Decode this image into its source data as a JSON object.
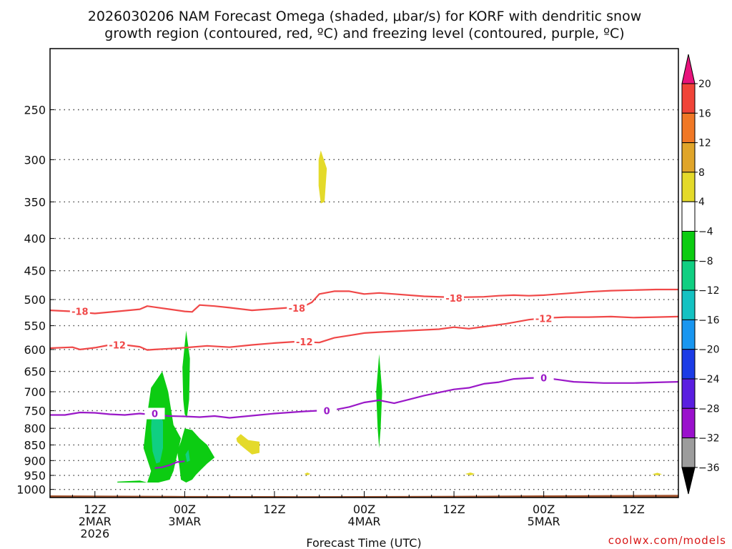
{
  "page": {
    "title_line1": "2026030206 NAM Forecast Omega (shaded, μbar/s) for KORF with dendritic snow",
    "title_line2": "growth region (contoured, red, ºC) and freezing level (contoured, purple, ºC)",
    "credit": "coolwx.com/models"
  },
  "chart_data": {
    "type": "time-height cross section",
    "title": "2026030206 NAM Forecast Omega (shaded, μbar/s) for KORF with dendritic snow growth region (contoured, red, ºC) and freezing level (contoured, purple, ºC)",
    "xlabel": "Forecast Time (UTC)",
    "ylabel": "",
    "x_range_hours": [
      0,
      84
    ],
    "y_range_hPa": [
      1030,
      200
    ],
    "y_scale": "log",
    "y_ticks": [
      250,
      300,
      350,
      400,
      450,
      500,
      550,
      600,
      650,
      700,
      750,
      800,
      850,
      900,
      950,
      1000
    ],
    "x_ticks": [
      {
        "hour": 6,
        "lines": [
          "12Z",
          "2MAR",
          "2026"
        ]
      },
      {
        "hour": 18,
        "lines": [
          "00Z",
          "3MAR"
        ]
      },
      {
        "hour": 30,
        "lines": [
          "12Z"
        ]
      },
      {
        "hour": 42,
        "lines": [
          "00Z",
          "4MAR"
        ]
      },
      {
        "hour": 54,
        "lines": [
          "12Z"
        ]
      },
      {
        "hour": 66,
        "lines": [
          "00Z",
          "5MAR"
        ]
      },
      {
        "hour": 78,
        "lines": [
          "12Z"
        ]
      }
    ],
    "colorbar": {
      "labels": [
        "20",
        "16",
        "12",
        "8",
        "4",
        "−4",
        "−8",
        "−12",
        "−16",
        "−20",
        "−24",
        "−28",
        "−32",
        "−36"
      ],
      "bands": [
        {
          "range": [
            20,
            99
          ],
          "color": "#e8137c"
        },
        {
          "range": [
            16,
            20
          ],
          "color": "#f04438"
        },
        {
          "range": [
            12,
            16
          ],
          "color": "#f07826"
        },
        {
          "range": [
            8,
            12
          ],
          "color": "#e0a52a"
        },
        {
          "range": [
            4,
            8
          ],
          "color": "#e4da2a"
        },
        {
          "range": [
            -4,
            4
          ],
          "color": "#ffffff"
        },
        {
          "range": [
            -8,
            -4
          ],
          "color": "#0ccc12"
        },
        {
          "range": [
            -12,
            -8
          ],
          "color": "#10cf82"
        },
        {
          "range": [
            -16,
            -12
          ],
          "color": "#14c2c2"
        },
        {
          "range": [
            -20,
            -16
          ],
          "color": "#1996f0"
        },
        {
          "range": [
            -24,
            -20
          ],
          "color": "#1c3ce6"
        },
        {
          "range": [
            -28,
            -24
          ],
          "color": "#5a1ee0"
        },
        {
          "range": [
            -32,
            -28
          ],
          "color": "#9a10cc"
        },
        {
          "range": [
            -36,
            -32
          ],
          "color": "#9c9c9c"
        },
        {
          "range": [
            -99,
            -36
          ],
          "color": "#000000"
        }
      ]
    },
    "contours": [
      {
        "name": "-18",
        "label": "-18",
        "kind": "dendritic",
        "color": "#f04848",
        "points": [
          [
            0,
            520
          ],
          [
            3,
            522
          ],
          [
            6,
            526
          ],
          [
            9,
            522
          ],
          [
            12,
            518
          ],
          [
            13,
            512
          ],
          [
            14,
            514
          ],
          [
            16,
            518
          ],
          [
            18,
            522
          ],
          [
            19,
            523
          ],
          [
            20,
            510
          ],
          [
            22,
            512
          ],
          [
            24,
            515
          ],
          [
            27,
            520
          ],
          [
            30,
            517
          ],
          [
            32,
            515
          ],
          [
            34,
            512
          ],
          [
            35,
            505
          ],
          [
            36,
            490
          ],
          [
            38,
            485
          ],
          [
            40,
            485
          ],
          [
            42,
            490
          ],
          [
            44,
            488
          ],
          [
            46,
            490
          ],
          [
            50,
            494
          ],
          [
            54,
            496
          ],
          [
            58,
            495
          ],
          [
            60,
            493
          ],
          [
            62,
            492
          ],
          [
            64,
            493
          ],
          [
            66,
            492
          ],
          [
            68,
            490
          ],
          [
            70,
            488
          ],
          [
            72,
            486
          ],
          [
            75,
            484
          ],
          [
            78,
            483
          ],
          [
            81,
            482
          ],
          [
            84,
            482
          ]
        ],
        "label_positions": [
          [
            4,
            522
          ],
          [
            33,
            516
          ],
          [
            54,
            497
          ]
        ]
      },
      {
        "name": "-12",
        "label": "-12",
        "kind": "dendritic",
        "color": "#f04848",
        "points": [
          [
            0,
            597
          ],
          [
            3,
            595
          ],
          [
            4,
            600
          ],
          [
            6,
            596
          ],
          [
            8,
            590
          ],
          [
            10,
            590
          ],
          [
            12,
            594
          ],
          [
            13,
            601
          ],
          [
            14,
            600
          ],
          [
            16,
            598
          ],
          [
            18,
            596
          ],
          [
            21,
            592
          ],
          [
            24,
            595
          ],
          [
            27,
            590
          ],
          [
            30,
            586
          ],
          [
            33,
            583
          ],
          [
            36,
            585
          ],
          [
            38,
            575
          ],
          [
            40,
            570
          ],
          [
            42,
            565
          ],
          [
            44,
            563
          ],
          [
            48,
            560
          ],
          [
            52,
            557
          ],
          [
            54,
            553
          ],
          [
            56,
            556
          ],
          [
            58,
            552
          ],
          [
            61,
            546
          ],
          [
            64,
            538
          ],
          [
            66,
            535
          ],
          [
            69,
            533
          ],
          [
            72,
            533
          ],
          [
            75,
            532
          ],
          [
            78,
            534
          ],
          [
            81,
            533
          ],
          [
            84,
            532
          ]
        ],
        "label_positions": [
          [
            9,
            590
          ],
          [
            34,
            583
          ],
          [
            66,
            536
          ]
        ]
      },
      {
        "name": "0",
        "label": "0",
        "kind": "freezing",
        "color": "#9a18c8",
        "points": [
          [
            0,
            762
          ],
          [
            2,
            762
          ],
          [
            4,
            755
          ],
          [
            6,
            756
          ],
          [
            8,
            760
          ],
          [
            10,
            762
          ],
          [
            12,
            758
          ],
          [
            14,
            762
          ],
          [
            16,
            765
          ],
          [
            18,
            766
          ],
          [
            20,
            768
          ],
          [
            22,
            765
          ],
          [
            24,
            770
          ],
          [
            26,
            766
          ],
          [
            28,
            762
          ],
          [
            30,
            758
          ],
          [
            34,
            752
          ],
          [
            38,
            748
          ],
          [
            40,
            740
          ],
          [
            42,
            728
          ],
          [
            44,
            722
          ],
          [
            46,
            730
          ],
          [
            48,
            720
          ],
          [
            50,
            710
          ],
          [
            52,
            702
          ],
          [
            54,
            694
          ],
          [
            56,
            690
          ],
          [
            58,
            680
          ],
          [
            60,
            676
          ],
          [
            62,
            668
          ],
          [
            64,
            666
          ],
          [
            66,
            665
          ],
          [
            68,
            670
          ],
          [
            70,
            675
          ],
          [
            74,
            678
          ],
          [
            78,
            678
          ],
          [
            82,
            676
          ],
          [
            84,
            675
          ]
        ],
        "label_positions": [
          [
            14,
            758
          ],
          [
            37,
            750
          ],
          [
            66,
            665
          ]
        ]
      },
      {
        "name": "0-low",
        "label": "",
        "kind": "freezing",
        "color": "#9a18c8",
        "points": [
          [
            14,
            925
          ],
          [
            15,
            922
          ],
          [
            16,
            915
          ],
          [
            17,
            905
          ],
          [
            18,
            902
          ]
        ],
        "label_positions": []
      }
    ],
    "omega_regions": [
      {
        "name": "lift-main",
        "value_range": [
          -8,
          -4
        ],
        "color": "#0ccc12",
        "polygon": [
          [
            9,
            972
          ],
          [
            12,
            968
          ],
          [
            13,
            975
          ],
          [
            13.5,
            935
          ],
          [
            12.5,
            860
          ],
          [
            13,
            760
          ],
          [
            13.5,
            690
          ],
          [
            15,
            650
          ],
          [
            15.8,
            700
          ],
          [
            16.5,
            790
          ],
          [
            17.5,
            830
          ],
          [
            17,
            880
          ],
          [
            16.5,
            935
          ],
          [
            16,
            965
          ],
          [
            14.5,
            975
          ],
          [
            11,
            975
          ],
          [
            9,
            975
          ]
        ]
      },
      {
        "name": "lift-core",
        "value_range": [
          -12,
          -8
        ],
        "color": "#10cf82",
        "polygon": [
          [
            13.6,
            760
          ],
          [
            14.5,
            748
          ],
          [
            15.1,
            780
          ],
          [
            15.1,
            860
          ],
          [
            14.7,
            905
          ],
          [
            14.2,
            910
          ],
          [
            13.7,
            870
          ],
          [
            13.5,
            800
          ]
        ]
      },
      {
        "name": "lift-col",
        "value_range": [
          -8,
          -4
        ],
        "color": "#0ccc12",
        "polygon": [
          [
            17.7,
            640
          ],
          [
            18.2,
            560
          ],
          [
            18.7,
            620
          ],
          [
            18.6,
            720
          ],
          [
            18.3,
            770
          ],
          [
            18,
            760
          ],
          [
            17.8,
            720
          ]
        ]
      },
      {
        "name": "lift-low",
        "value_range": [
          -8,
          -4
        ],
        "color": "#0ccc12",
        "polygon": [
          [
            17,
            870
          ],
          [
            17.5,
            840
          ],
          [
            18,
            800
          ],
          [
            19,
            805
          ],
          [
            20,
            830
          ],
          [
            21,
            850
          ],
          [
            22,
            890
          ],
          [
            21,
            910
          ],
          [
            20,
            935
          ],
          [
            19.5,
            948
          ],
          [
            19,
            965
          ],
          [
            18.2,
            975
          ],
          [
            17.5,
            965
          ],
          [
            17.3,
            920
          ]
        ]
      },
      {
        "name": "lift-sliver",
        "value_range": [
          -12,
          -8
        ],
        "color": "#10cf82",
        "polygon": [
          [
            18.1,
            880
          ],
          [
            18.5,
            865
          ],
          [
            18.7,
            900
          ],
          [
            18.3,
            905
          ]
        ]
      },
      {
        "name": "lift-east",
        "value_range": [
          -8,
          -4
        ],
        "color": "#0ccc12",
        "polygon": [
          [
            43.6,
            700
          ],
          [
            44,
            610
          ],
          [
            44.4,
            700
          ],
          [
            44.2,
            800
          ],
          [
            44,
            860
          ],
          [
            43.8,
            800
          ]
        ]
      },
      {
        "name": "sink-upper",
        "value_range": [
          4,
          8
        ],
        "color": "#e4da2a",
        "polygon": [
          [
            35.9,
            300
          ],
          [
            36.2,
            290
          ],
          [
            37,
            310
          ],
          [
            36.7,
            350
          ],
          [
            36.2,
            352
          ],
          [
            35.9,
            330
          ]
        ]
      },
      {
        "name": "sink-mid",
        "value_range": [
          4,
          8
        ],
        "color": "#e4da2a",
        "polygon": [
          [
            24.9,
            830
          ],
          [
            25.5,
            817
          ],
          [
            26.5,
            835
          ],
          [
            28,
            840
          ],
          [
            28,
            875
          ],
          [
            27,
            880
          ],
          [
            25.7,
            855
          ],
          [
            25,
            840
          ]
        ]
      },
      {
        "name": "sink-dot-1",
        "value_range": [
          4,
          8
        ],
        "color": "#e4da2a",
        "polygon": [
          [
            34,
            945
          ],
          [
            34.4,
            940
          ],
          [
            34.8,
            945
          ],
          [
            34.4,
            950
          ]
        ]
      },
      {
        "name": "sink-dot-2",
        "value_range": [
          4,
          8
        ],
        "color": "#e4da2a",
        "polygon": [
          [
            55.5,
            945
          ],
          [
            56.2,
            940
          ],
          [
            56.8,
            945
          ],
          [
            56.2,
            950
          ]
        ]
      },
      {
        "name": "sink-dot-3",
        "value_range": [
          4,
          8
        ],
        "color": "#e4da2a",
        "polygon": [
          [
            80.5,
            946
          ],
          [
            81.2,
            941
          ],
          [
            81.8,
            946
          ],
          [
            81.2,
            950
          ]
        ]
      }
    ],
    "ground": {
      "name": "terrain",
      "color": "#a0522d",
      "top_hPa": [
        1022,
        1024,
        1025,
        1024,
        1022,
        1020
      ]
    }
  }
}
